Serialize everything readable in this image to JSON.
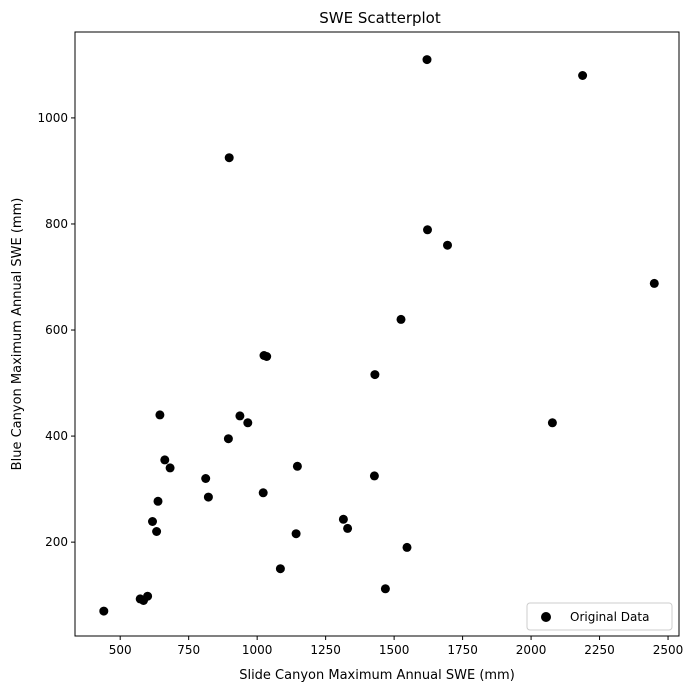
{
  "chart_data": {
    "type": "scatter",
    "title": "SWE Scatterplot",
    "xlabel": "Slide Canyon Maximum Annual SWE (mm)",
    "ylabel": "Blue Canyon Maximum Annual SWE (mm)",
    "xlim": [
      335,
      2540
    ],
    "ylim": [
      23,
      1162
    ],
    "xticks": [
      500,
      750,
      1000,
      1250,
      1500,
      1750,
      2000,
      2250,
      2500
    ],
    "yticks": [
      200,
      400,
      600,
      800,
      1000
    ],
    "grid": false,
    "legend_position": "lower-right",
    "series": [
      {
        "name": "Original Data",
        "color": "#000000",
        "points": [
          [
            440,
            70
          ],
          [
            573,
            93
          ],
          [
            585,
            90
          ],
          [
            600,
            98
          ],
          [
            618,
            239
          ],
          [
            633,
            220
          ],
          [
            638,
            277
          ],
          [
            645,
            440
          ],
          [
            663,
            355
          ],
          [
            682,
            340
          ],
          [
            812,
            320
          ],
          [
            822,
            285
          ],
          [
            895,
            395
          ],
          [
            898,
            925
          ],
          [
            937,
            438
          ],
          [
            966,
            425
          ],
          [
            1022,
            293
          ],
          [
            1025,
            552
          ],
          [
            1035,
            550
          ],
          [
            1085,
            150
          ],
          [
            1142,
            216
          ],
          [
            1147,
            343
          ],
          [
            1315,
            243
          ],
          [
            1330,
            226
          ],
          [
            1428,
            325
          ],
          [
            1430,
            516
          ],
          [
            1468,
            112
          ],
          [
            1525,
            620
          ],
          [
            1547,
            190
          ],
          [
            1620,
            1110
          ],
          [
            1622,
            789
          ],
          [
            1695,
            760
          ],
          [
            2078,
            425
          ],
          [
            2188,
            1080
          ],
          [
            2450,
            688
          ]
        ]
      }
    ]
  }
}
